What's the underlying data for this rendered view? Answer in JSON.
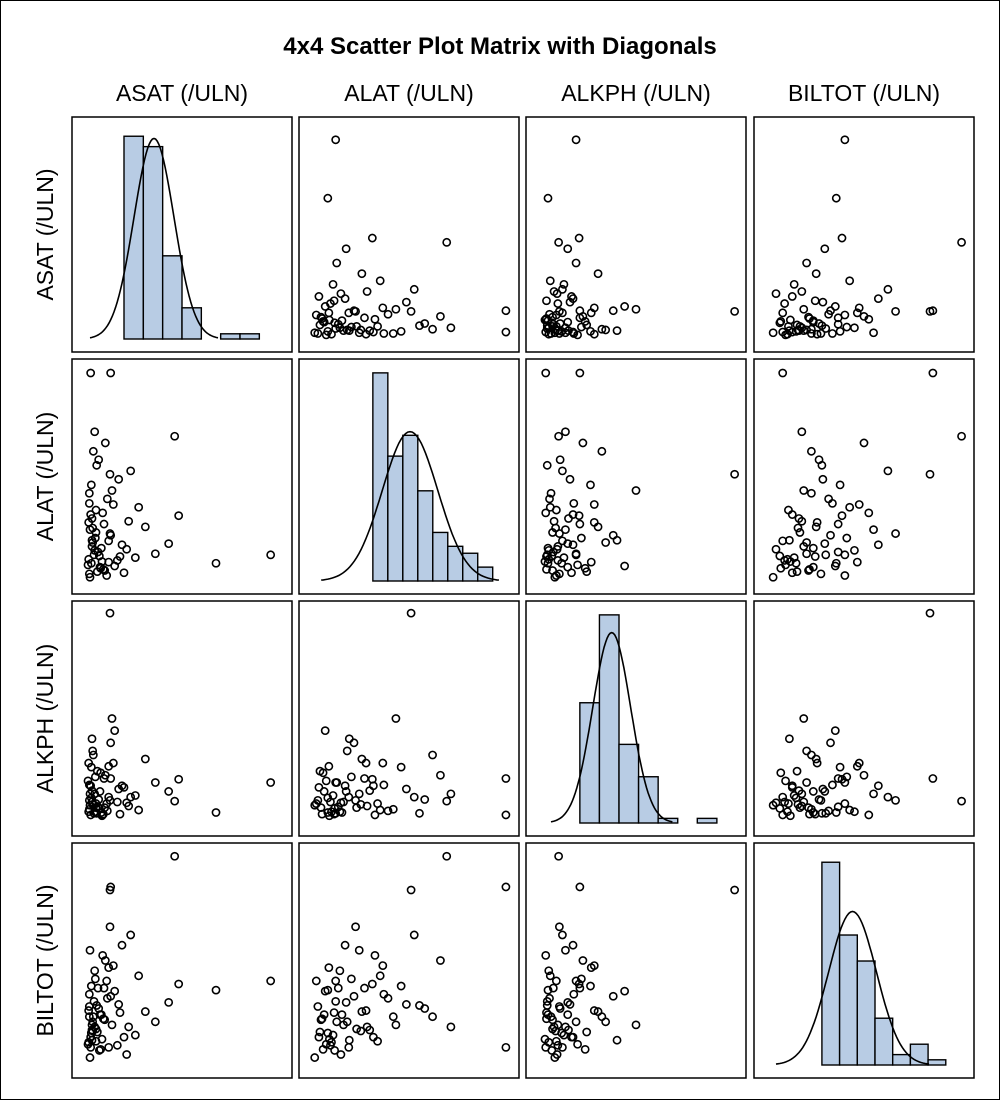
{
  "chart_data": {
    "type": "scatter",
    "subtype": "scatter-matrix-with-histogram-diagonals",
    "title": "4x4 Scatter Plot Matrix with Diagonals",
    "variables": [
      "ASAT (/ULN)",
      "ALAT (/ULN)",
      "ALKPH (/ULN)",
      "BILTOT (/ULN)"
    ],
    "axis_ranges": [
      [
        0,
        3.3
      ],
      [
        0,
        4.2
      ],
      [
        0,
        2.9
      ],
      [
        0,
        2.3
      ]
    ],
    "grid": false,
    "tick_labels_shown": false,
    "colors": {
      "bar_fill": "#B8CCE4",
      "bar_edge": "#000000",
      "marker": "#000000",
      "curve": "#000000"
    },
    "marker": "open-circle",
    "observations_columns": [
      "ASAT",
      "ALAT",
      "ALKPH",
      "BILTOT"
    ],
    "observations": [
      [
        2.98,
        0.7,
        0.66,
        0.95
      ],
      [
        2.16,
        0.55,
        0.29,
        0.86
      ],
      [
        0.28,
        3.95,
        0.26,
        0.3
      ],
      [
        0.57,
        2.14,
        2.75,
        1.84
      ],
      [
        1.54,
        2.82,
        0.43,
        2.17
      ],
      [
        0.58,
        3.95,
        0.71,
        1.87
      ],
      [
        0.25,
        0.62,
        0.3,
        0.35
      ],
      [
        0.3,
        0.85,
        0.42,
        0.52
      ],
      [
        0.36,
        1.1,
        0.35,
        0.48
      ],
      [
        0.42,
        0.48,
        0.55,
        0.62
      ],
      [
        0.28,
        1.42,
        0.62,
        0.4
      ],
      [
        0.33,
        0.7,
        0.28,
        0.75
      ],
      [
        0.48,
        1.25,
        0.71,
        0.88
      ],
      [
        0.55,
        0.95,
        0.48,
        0.3
      ],
      [
        0.26,
        1.8,
        0.33,
        0.6
      ],
      [
        0.38,
        0.4,
        0.8,
        0.45
      ],
      [
        0.62,
        1.6,
        0.9,
        1.1
      ],
      [
        0.45,
        0.58,
        0.25,
        0.38
      ],
      [
        0.7,
        2.05,
        0.58,
        0.72
      ],
      [
        0.31,
        0.92,
        1.05,
        0.55
      ],
      [
        0.52,
        0.33,
        0.4,
        0.95
      ],
      [
        0.27,
        1.15,
        0.52,
        1.25
      ],
      [
        0.4,
        2.4,
        0.45,
        0.68
      ],
      [
        0.85,
        1.3,
        0.37,
        0.5
      ],
      [
        0.24,
        0.52,
        0.68,
        0.33
      ],
      [
        0.58,
        1.05,
        1.15,
        0.8
      ],
      [
        0.34,
        0.78,
        0.3,
        1.05
      ],
      [
        0.95,
        0.65,
        0.5,
        0.42
      ],
      [
        0.29,
        1.95,
        0.85,
        0.9
      ],
      [
        0.47,
        0.44,
        0.27,
        0.58
      ],
      [
        0.75,
        0.88,
        0.62,
        1.3
      ],
      [
        0.36,
        1.5,
        0.4,
        0.36
      ],
      [
        0.5,
        2.7,
        0.75,
        1.15
      ],
      [
        0.26,
        0.36,
        0.44,
        0.7
      ],
      [
        1.1,
        1.2,
        0.95,
        0.65
      ],
      [
        0.41,
        0.68,
        0.34,
        0.27
      ],
      [
        0.64,
        0.5,
        1.3,
        0.85
      ],
      [
        0.3,
        1.35,
        0.56,
        0.47
      ],
      [
        0.88,
        2.2,
        0.48,
        1.4
      ],
      [
        0.44,
        0.82,
        0.29,
        0.62
      ],
      [
        0.27,
        0.3,
        0.38,
        0.2
      ],
      [
        1.25,
        0.72,
        0.66,
        0.55
      ],
      [
        0.53,
        1.7,
        0.31,
        0.78
      ],
      [
        0.35,
        1.0,
        0.73,
        0.97
      ],
      [
        0.68,
        0.6,
        0.42,
        0.32
      ],
      [
        0.32,
        2.55,
        1.0,
        0.6
      ],
      [
        0.46,
        1.45,
        0.26,
        1.2
      ],
      [
        1.45,
        0.9,
        0.55,
        0.74
      ],
      [
        0.29,
        0.55,
        0.47,
        0.44
      ],
      [
        0.6,
        1.85,
        1.45,
        0.52
      ],
      [
        0.39,
        0.75,
        0.36,
        0.88
      ],
      [
        0.78,
        0.38,
        0.6,
        0.4
      ],
      [
        0.25,
        1.28,
        0.9,
        0.66
      ],
      [
        1.0,
        1.55,
        0.32,
        1.0
      ],
      [
        0.43,
        0.46,
        0.78,
        0.28
      ],
      [
        0.57,
        1.08,
        0.44,
        1.48
      ],
      [
        0.34,
        2.9,
        0.52,
        0.5
      ],
      [
        0.72,
        0.67,
        0.27,
        0.64
      ],
      [
        0.3,
        0.96,
        1.2,
        0.37
      ],
      [
        1.6,
        1.4,
        0.7,
        0.92
      ],
      [
        0.49,
        0.42,
        0.35,
        0.57
      ],
      [
        0.26,
        1.62,
        0.63,
        0.82
      ],
      [
        0.82,
        0.8,
        0.41,
        0.23
      ],
      [
        0.37,
        2.3,
        0.28,
        0.71
      ],
      [
        0.55,
        0.57,
        0.86,
        1.08
      ],
      [
        0.31,
        1.18,
        0.39,
        0.46
      ]
    ],
    "histograms": [
      {
        "variable": "ASAT (/ULN)",
        "bin_start": 0.78,
        "bin_width": 0.29,
        "percent": [
          39,
          37,
          16,
          6,
          0,
          1,
          1
        ],
        "ylim": [
          0,
          42.7
        ],
        "normal_curve": {
          "mean": 1.23,
          "sd": 0.3
        }
      },
      {
        "variable": "ALAT (/ULN)",
        "bin_start": 1.41,
        "bin_width": 0.286,
        "percent": [
          30,
          18,
          21,
          13,
          7,
          5,
          4,
          2
        ],
        "ylim": [
          0,
          32
        ],
        "normal_curve": {
          "mean": 2.12,
          "sd": 0.53
        }
      },
      {
        "variable": "ALKPH (/ULN)",
        "bin_start": 0.71,
        "bin_width": 0.258,
        "percent": [
          26,
          45,
          17,
          10,
          1,
          0,
          1
        ],
        "ylim": [
          0,
          48
        ],
        "normal_curve": {
          "mean": 1.13,
          "sd": 0.25
        }
      },
      {
        "variable": "BILTOT (/ULN)",
        "bin_start": 0.71,
        "bin_width": 0.185,
        "percent": [
          39,
          25,
          20,
          9,
          2,
          4,
          1
        ],
        "ylim": [
          0,
          42.7
        ],
        "normal_curve": {
          "mean": 1.03,
          "sd": 0.25
        }
      }
    ]
  }
}
